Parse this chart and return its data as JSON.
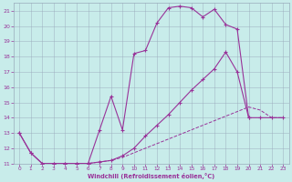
{
  "xlabel": "Windchill (Refroidissement éolien,°C)",
  "xlim": [
    -0.5,
    23.5
  ],
  "ylim": [
    11,
    21.5
  ],
  "xticks": [
    0,
    1,
    2,
    3,
    4,
    5,
    6,
    7,
    8,
    9,
    10,
    11,
    12,
    13,
    14,
    15,
    16,
    17,
    18,
    19,
    20,
    21,
    22,
    23
  ],
  "yticks": [
    11,
    12,
    13,
    14,
    15,
    16,
    17,
    18,
    19,
    20,
    21
  ],
  "bg_color": "#c8ecea",
  "line_color": "#993399",
  "grid_color": "#99aabb",
  "curve1_x": [
    0,
    1,
    2,
    3,
    4,
    5,
    6,
    7,
    8,
    9,
    10,
    11,
    12,
    13,
    14,
    15,
    16,
    17,
    18,
    19,
    20
  ],
  "curve1_y": [
    13,
    11.7,
    11,
    11,
    11,
    11,
    11,
    13.2,
    15.4,
    13.2,
    18.2,
    18.4,
    20.2,
    21.2,
    21.3,
    21.2,
    20.6,
    21.1,
    20.1,
    19.8,
    14.0
  ],
  "curve2_x": [
    0,
    1,
    2,
    3,
    4,
    5,
    6,
    7,
    8,
    9,
    10,
    11,
    12,
    13,
    14,
    15,
    16,
    17,
    18,
    19,
    20,
    21,
    22,
    23
  ],
  "curve2_y": [
    13,
    11.7,
    11,
    11,
    11,
    11,
    11,
    11.1,
    11.2,
    11.5,
    12.0,
    12.8,
    13.5,
    14.2,
    15.0,
    15.8,
    16.5,
    17.2,
    18.3,
    17.0,
    14.0,
    14.0,
    14.0,
    14.0
  ],
  "curve3_x": [
    2,
    3,
    4,
    5,
    6,
    7,
    8,
    9,
    10,
    11,
    12,
    13,
    14,
    15,
    16,
    17,
    18,
    19,
    20,
    21,
    22,
    23
  ],
  "curve3_y": [
    11,
    11,
    11,
    11,
    11,
    11.1,
    11.2,
    11.4,
    11.7,
    12.0,
    12.3,
    12.6,
    12.9,
    13.2,
    13.5,
    13.8,
    14.1,
    14.4,
    14.7,
    14.5,
    14.0,
    14.0
  ]
}
